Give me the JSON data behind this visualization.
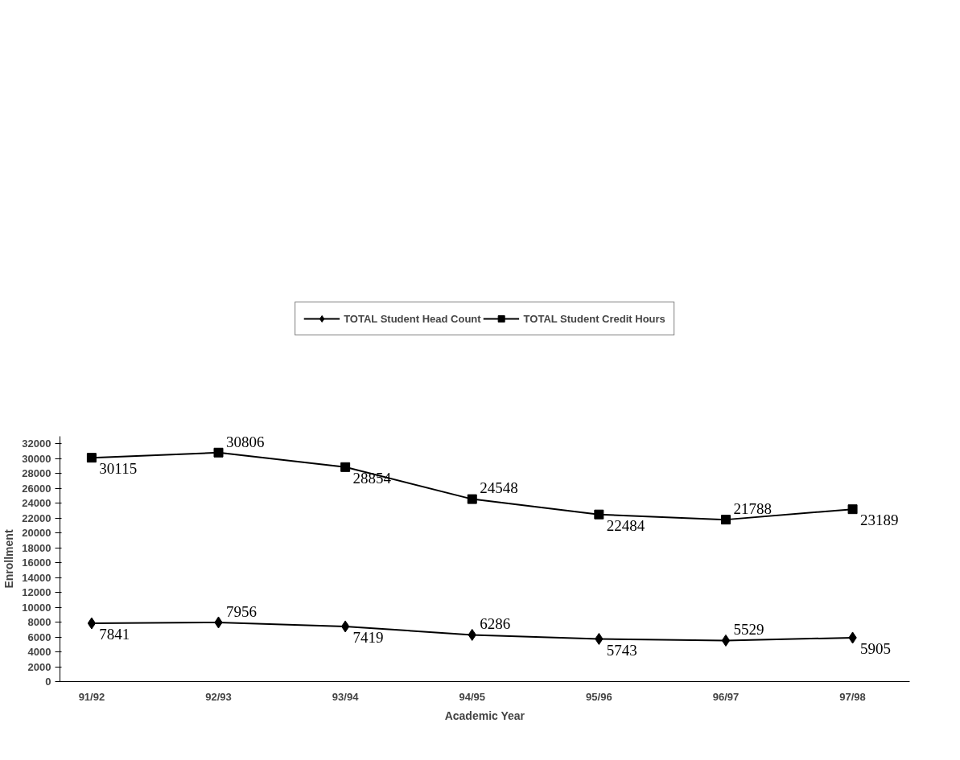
{
  "chart_data": {
    "type": "line",
    "xlabel": "Academic Year",
    "ylabel": "Enrollment",
    "categories": [
      "91/92",
      "92/93",
      "93/94",
      "94/95",
      "95/96",
      "96/97",
      "97/98"
    ],
    "series": [
      {
        "name": "TOTAL Student Head Count",
        "color": "#000000",
        "marker": "diamond",
        "values": [
          7841,
          7956,
          7419,
          6286,
          5743,
          5529,
          5905
        ]
      },
      {
        "name": "TOTAL Student Credit Hours",
        "color": "#000000",
        "marker": "square",
        "values": [
          30115,
          30806,
          28854,
          24548,
          22484,
          21788,
          23189
        ]
      }
    ],
    "ylim": [
      0,
      33000
    ],
    "yticks": [
      0,
      2000,
      4000,
      6000,
      8000,
      10000,
      12000,
      14000,
      16000,
      18000,
      20000,
      22000,
      24000,
      26000,
      28000,
      30000,
      32000
    ],
    "data_labels": true,
    "grid": false,
    "legend": "top",
    "line_style": "solid"
  }
}
